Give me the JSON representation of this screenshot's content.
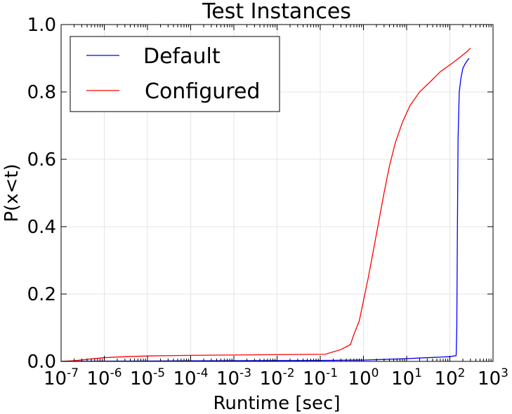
{
  "chart_data": {
    "type": "line",
    "title": "Test Instances",
    "xlabel": "Runtime [sec]",
    "ylabel": "P(x<t)",
    "xscale": "log",
    "xlim": [
      1e-07,
      1000
    ],
    "ylim": [
      0.0,
      1.0
    ],
    "grid": true,
    "legend_position": "top-left",
    "x_ticks": [
      {
        "base": "10",
        "exp": "-7"
      },
      {
        "base": "10",
        "exp": "-6"
      },
      {
        "base": "10",
        "exp": "-5"
      },
      {
        "base": "10",
        "exp": "-4"
      },
      {
        "base": "10",
        "exp": "-3"
      },
      {
        "base": "10",
        "exp": "-2"
      },
      {
        "base": "10",
        "exp": "-1"
      },
      {
        "base": "10",
        "exp": "0"
      },
      {
        "base": "10",
        "exp": "1"
      },
      {
        "base": "10",
        "exp": "2"
      },
      {
        "base": "10",
        "exp": "3"
      }
    ],
    "y_ticks": [
      "0.0",
      "0.2",
      "0.4",
      "0.6",
      "0.8",
      "1.0"
    ],
    "series": [
      {
        "name": "Default",
        "color": "#0000ff",
        "points": [
          [
            1e-07,
            0.0
          ],
          [
            1e-05,
            0.001
          ],
          [
            0.001,
            0.002
          ],
          [
            0.1,
            0.003
          ],
          [
            1,
            0.004
          ],
          [
            10,
            0.008
          ],
          [
            20,
            0.01
          ],
          [
            100,
            0.014
          ],
          [
            140,
            0.017
          ],
          [
            145,
            0.1
          ],
          [
            150,
            0.4
          ],
          [
            155,
            0.66
          ],
          [
            165,
            0.8
          ],
          [
            180,
            0.84
          ],
          [
            200,
            0.87
          ],
          [
            230,
            0.885
          ],
          [
            260,
            0.895
          ],
          [
            280,
            0.9
          ]
        ]
      },
      {
        "name": "Configured",
        "color": "#ff0000",
        "points": [
          [
            1e-07,
            0.0
          ],
          [
            2e-07,
            0.002
          ],
          [
            4e-07,
            0.006
          ],
          [
            1e-06,
            0.011
          ],
          [
            3e-06,
            0.014
          ],
          [
            1e-05,
            0.016
          ],
          [
            0.0001,
            0.018
          ],
          [
            0.001,
            0.019
          ],
          [
            0.01,
            0.02
          ],
          [
            0.13,
            0.021
          ],
          [
            0.3,
            0.035
          ],
          [
            0.5,
            0.05
          ],
          [
            0.6,
            0.08
          ],
          [
            0.8,
            0.12
          ],
          [
            1.0,
            0.18
          ],
          [
            1.3,
            0.25
          ],
          [
            1.7,
            0.33
          ],
          [
            2.3,
            0.42
          ],
          [
            3.0,
            0.5
          ],
          [
            4.0,
            0.58
          ],
          [
            5.5,
            0.65
          ],
          [
            8,
            0.71
          ],
          [
            12,
            0.76
          ],
          [
            20,
            0.8
          ],
          [
            35,
            0.83
          ],
          [
            60,
            0.86
          ],
          [
            100,
            0.88
          ],
          [
            180,
            0.905
          ],
          [
            250,
            0.92
          ],
          [
            300,
            0.93
          ]
        ]
      }
    ]
  }
}
